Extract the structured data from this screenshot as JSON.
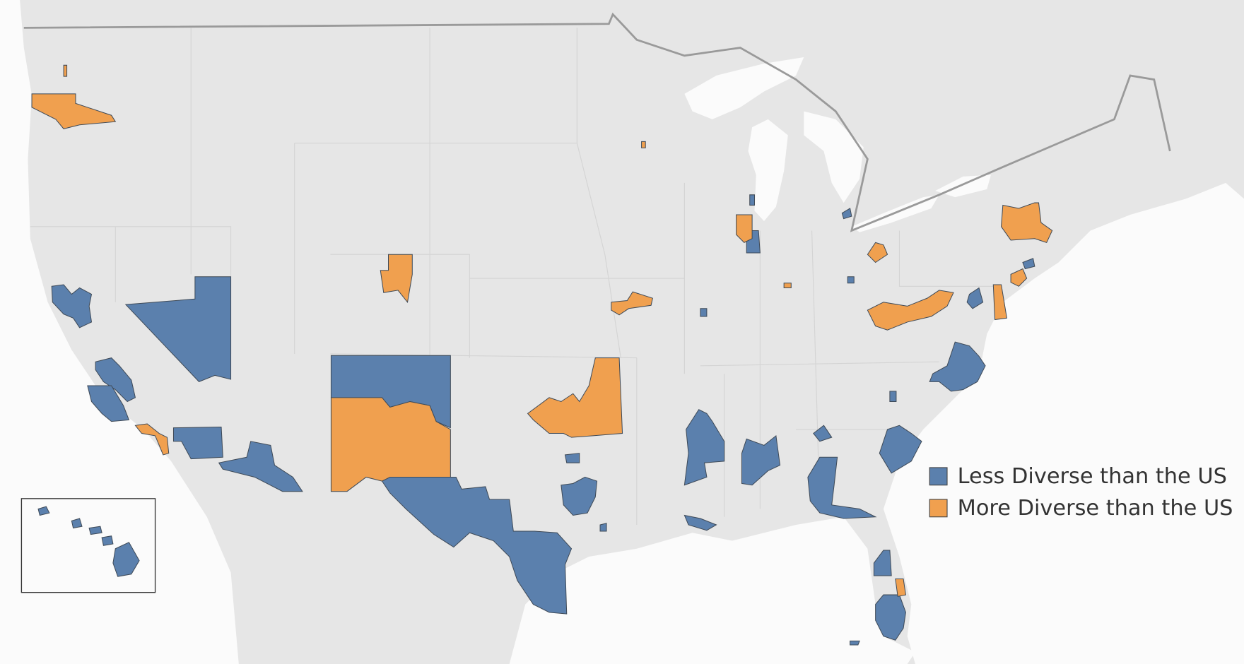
{
  "legend": {
    "items": [
      {
        "label": "Less Diverse than the US",
        "color": "#5b80ad"
      },
      {
        "label": "More Diverse than the US",
        "color": "#f0a04f"
      }
    ]
  }
}
